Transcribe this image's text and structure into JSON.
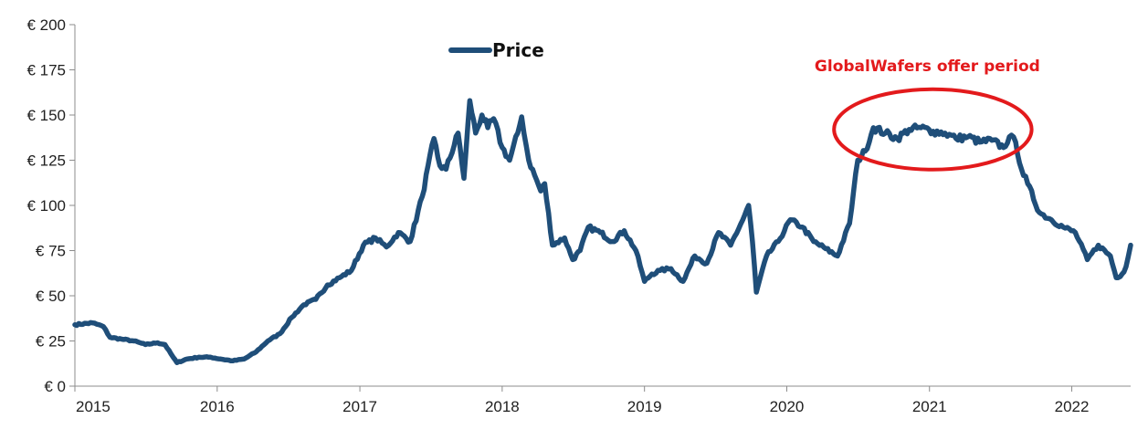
{
  "chart_data": {
    "type": "line",
    "title": "",
    "xlabel": "",
    "ylabel": "",
    "ylim": [
      0,
      200
    ],
    "xlim": [
      "2015-01-01",
      "2022-06-01"
    ],
    "y_ticks": [
      0,
      25,
      50,
      75,
      100,
      125,
      150,
      175,
      200
    ],
    "y_tick_labels": [
      "€ 0",
      "€ 25",
      "€ 50",
      "€ 75",
      "€ 100",
      "€ 125",
      "€ 150",
      "€ 175",
      "€ 200"
    ],
    "x_ticks": [
      "2015-01-01",
      "2016-01-01",
      "2017-01-01",
      "2018-01-01",
      "2019-01-01",
      "2020-01-01",
      "2021-01-01",
      "2022-01-01"
    ],
    "x_tick_labels": [
      "2015",
      "2016",
      "2017",
      "2018",
      "2019",
      "2020",
      "2021",
      "2022"
    ],
    "grid": false,
    "legend": {
      "position": "top-left",
      "label": "Price"
    },
    "series": [
      {
        "name": "Price",
        "color": "#1f4e79",
        "points": [
          [
            "2015-01-01",
            34
          ],
          [
            "2015-02-15",
            35
          ],
          [
            "2015-03-15",
            33
          ],
          [
            "2015-04-01",
            27
          ],
          [
            "2015-05-01",
            26
          ],
          [
            "2015-06-01",
            25
          ],
          [
            "2015-07-01",
            23
          ],
          [
            "2015-08-01",
            24
          ],
          [
            "2015-08-20",
            23
          ],
          [
            "2015-09-10",
            16
          ],
          [
            "2015-09-20",
            13
          ],
          [
            "2015-10-15",
            15
          ],
          [
            "2015-11-15",
            16
          ],
          [
            "2015-12-15",
            16
          ],
          [
            "2016-01-10",
            15
          ],
          [
            "2016-02-10",
            14
          ],
          [
            "2016-03-10",
            15
          ],
          [
            "2016-04-10",
            19
          ],
          [
            "2016-05-10",
            25
          ],
          [
            "2016-06-10",
            29
          ],
          [
            "2016-07-10",
            38
          ],
          [
            "2016-08-10",
            45
          ],
          [
            "2016-09-10",
            48
          ],
          [
            "2016-10-10",
            56
          ],
          [
            "2016-11-10",
            60
          ],
          [
            "2016-12-10",
            64
          ],
          [
            "2017-01-10",
            78
          ],
          [
            "2017-02-10",
            82
          ],
          [
            "2017-03-10",
            77
          ],
          [
            "2017-04-10",
            85
          ],
          [
            "2017-05-10",
            80
          ],
          [
            "2017-06-10",
            105
          ],
          [
            "2017-07-10",
            137
          ],
          [
            "2017-07-25",
            122
          ],
          [
            "2017-08-10",
            120
          ],
          [
            "2017-09-10",
            140
          ],
          [
            "2017-09-25",
            115
          ],
          [
            "2017-10-10",
            158
          ],
          [
            "2017-10-25",
            140
          ],
          [
            "2017-11-10",
            150
          ],
          [
            "2017-11-25",
            143
          ],
          [
            "2017-12-10",
            148
          ],
          [
            "2018-01-01",
            132
          ],
          [
            "2018-01-20",
            125
          ],
          [
            "2018-02-10",
            140
          ],
          [
            "2018-02-20",
            149
          ],
          [
            "2018-03-10",
            125
          ],
          [
            "2018-04-10",
            108
          ],
          [
            "2018-04-20",
            112
          ],
          [
            "2018-05-10",
            78
          ],
          [
            "2018-06-10",
            82
          ],
          [
            "2018-07-01",
            70
          ],
          [
            "2018-07-20",
            75
          ],
          [
            "2018-08-10",
            88
          ],
          [
            "2018-09-10",
            85
          ],
          [
            "2018-10-10",
            80
          ],
          [
            "2018-11-10",
            86
          ],
          [
            "2018-12-10",
            75
          ],
          [
            "2019-01-01",
            58
          ],
          [
            "2019-01-20",
            62
          ],
          [
            "2019-02-10",
            64
          ],
          [
            "2019-03-10",
            65
          ],
          [
            "2019-04-10",
            58
          ],
          [
            "2019-05-10",
            72
          ],
          [
            "2019-06-10",
            68
          ],
          [
            "2019-07-10",
            85
          ],
          [
            "2019-08-10",
            78
          ],
          [
            "2019-09-10",
            92
          ],
          [
            "2019-09-25",
            100
          ],
          [
            "2019-10-05",
            80
          ],
          [
            "2019-10-15",
            52
          ],
          [
            "2019-11-10",
            72
          ],
          [
            "2019-12-10",
            80
          ],
          [
            "2020-01-10",
            92
          ],
          [
            "2020-02-10",
            88
          ],
          [
            "2020-03-10",
            80
          ],
          [
            "2020-04-10",
            76
          ],
          [
            "2020-05-10",
            72
          ],
          [
            "2020-06-10",
            90
          ],
          [
            "2020-07-01",
            125
          ],
          [
            "2020-07-20",
            130
          ],
          [
            "2020-08-10",
            143
          ],
          [
            "2020-09-10",
            140
          ],
          [
            "2020-10-10",
            137
          ],
          [
            "2020-11-10",
            142
          ],
          [
            "2020-12-10",
            143
          ],
          [
            "2021-01-10",
            141
          ],
          [
            "2021-02-10",
            140
          ],
          [
            "2021-03-10",
            137
          ],
          [
            "2021-04-10",
            138
          ],
          [
            "2021-05-10",
            135
          ],
          [
            "2021-06-10",
            136
          ],
          [
            "2021-07-10",
            132
          ],
          [
            "2021-07-25",
            138
          ],
          [
            "2021-08-10",
            135
          ],
          [
            "2021-08-25",
            120
          ],
          [
            "2021-09-10",
            112
          ],
          [
            "2021-10-10",
            96
          ],
          [
            "2021-11-10",
            92
          ],
          [
            "2021-12-10",
            88
          ],
          [
            "2022-01-10",
            85
          ],
          [
            "2022-02-10",
            70
          ],
          [
            "2022-03-10",
            78
          ],
          [
            "2022-04-10",
            72
          ],
          [
            "2022-04-25",
            60
          ],
          [
            "2022-05-10",
            62
          ],
          [
            "2022-05-20",
            66
          ],
          [
            "2022-06-01",
            78
          ]
        ]
      }
    ],
    "annotations": [
      {
        "text": "GlobalWafers offer period",
        "color": "#e31a1c",
        "region_start": "2020-05-01",
        "region_end": "2021-09-20",
        "region_center_value": 142
      }
    ]
  }
}
